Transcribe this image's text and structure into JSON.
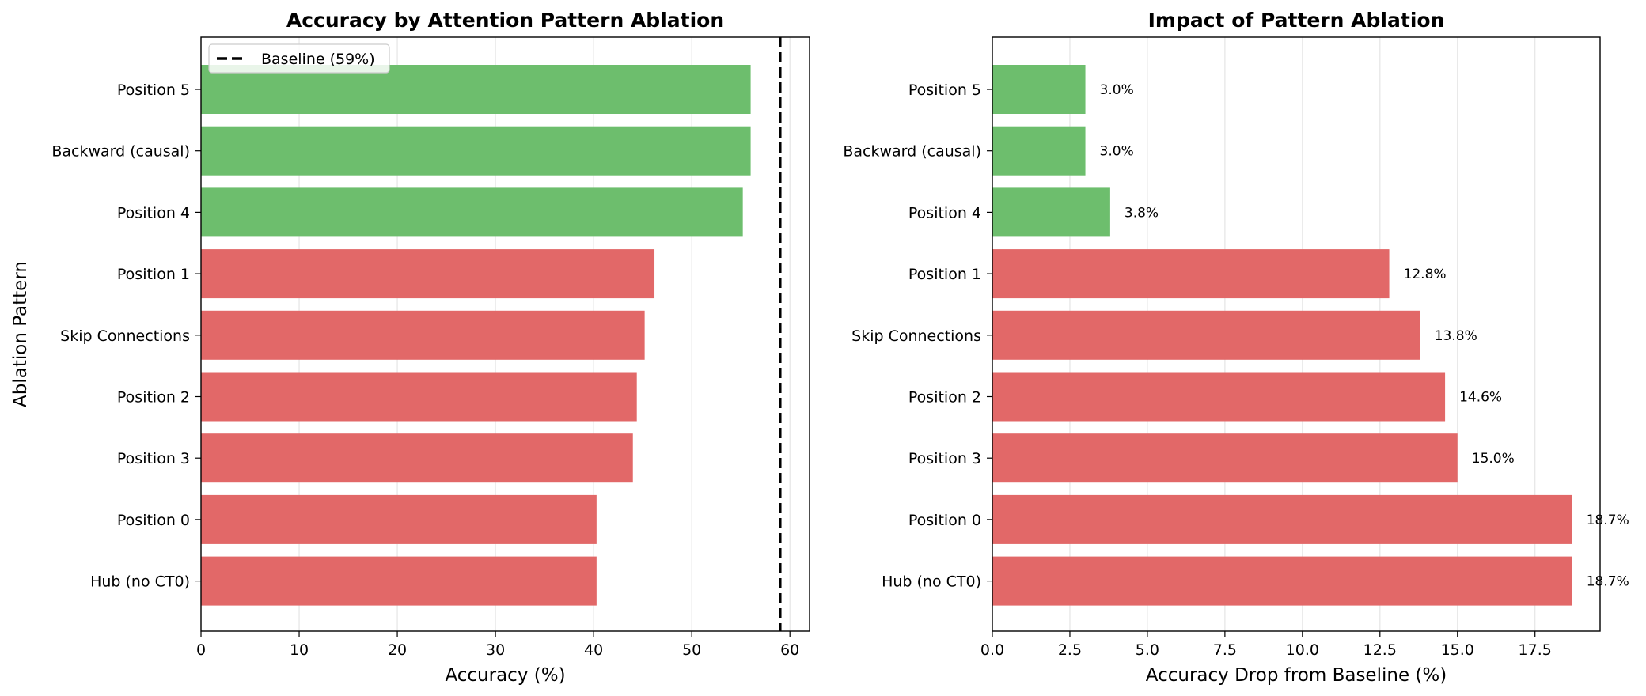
{
  "chart_data": [
    {
      "type": "bar",
      "orientation": "horizontal",
      "title": "Accuracy by Attention Pattern Ablation",
      "xlabel": "Accuracy (%)",
      "ylabel": "Ablation Pattern",
      "xlim": [
        0,
        62
      ],
      "xticks": [
        "0",
        "10",
        "20",
        "30",
        "40",
        "50",
        "60"
      ],
      "categories": [
        "Position 5",
        "Backward (causal)",
        "Position 4",
        "Position 1",
        "Skip Connections",
        "Position 2",
        "Position 3",
        "Position 0",
        "Hub (no CT0)"
      ],
      "values": [
        56.0,
        56.0,
        55.2,
        46.2,
        45.2,
        44.4,
        44.0,
        40.3,
        40.3
      ],
      "bar_colors": [
        "#6dbe6d",
        "#6dbe6d",
        "#6dbe6d",
        "#e26868",
        "#e26868",
        "#e26868",
        "#e26868",
        "#e26868",
        "#e26868"
      ],
      "reference_line": {
        "value": 59,
        "style": "dashed",
        "color": "#000000",
        "legend_label": "Baseline (59%)"
      },
      "legend_position": "top-left",
      "grid": "x"
    },
    {
      "type": "bar",
      "orientation": "horizontal",
      "title": "Impact of Pattern Ablation",
      "xlabel": "Accuracy Drop from Baseline (%)",
      "ylabel": "",
      "xlim": [
        0,
        19.6
      ],
      "xticks": [
        "0.0",
        "2.5",
        "5.0",
        "7.5",
        "10.0",
        "12.5",
        "15.0",
        "17.5"
      ],
      "categories": [
        "Position 5",
        "Backward (causal)",
        "Position 4",
        "Position 1",
        "Skip Connections",
        "Position 2",
        "Position 3",
        "Position 0",
        "Hub (no CT0)"
      ],
      "values": [
        3.0,
        3.0,
        3.8,
        12.8,
        13.8,
        14.6,
        15.0,
        18.7,
        18.7
      ],
      "data_labels": [
        "3.0%",
        "3.0%",
        "3.8%",
        "12.8%",
        "13.8%",
        "14.6%",
        "15.0%",
        "18.7%",
        "18.7%"
      ],
      "bar_colors": [
        "#6dbe6d",
        "#6dbe6d",
        "#6dbe6d",
        "#e26868",
        "#e26868",
        "#e26868",
        "#e26868",
        "#e26868",
        "#e26868"
      ],
      "grid": "x"
    }
  ]
}
